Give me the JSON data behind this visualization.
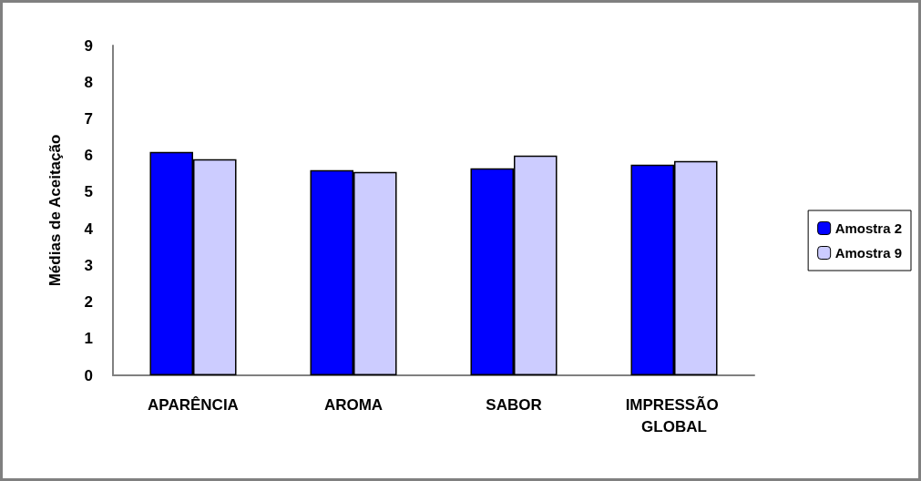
{
  "chart_data": {
    "type": "bar",
    "ylabel": "Médias de Aceitação",
    "categories": [
      "APARÊNCIA",
      "AROMA",
      "SABOR",
      "IMPRESSÃO GLOBAL"
    ],
    "series": [
      {
        "name": "Amostra 2",
        "color": "#0000ff",
        "values": [
          6.1,
          5.6,
          5.65,
          5.75
        ]
      },
      {
        "name": "Amostra 9",
        "color": "#ccccff",
        "values": [
          5.9,
          5.55,
          6.0,
          5.85
        ]
      }
    ],
    "ylim": [
      0,
      9
    ],
    "yticks": [
      0,
      1,
      2,
      3,
      4,
      5,
      6,
      7,
      8,
      9
    ],
    "grid": false,
    "legend": "right"
  }
}
